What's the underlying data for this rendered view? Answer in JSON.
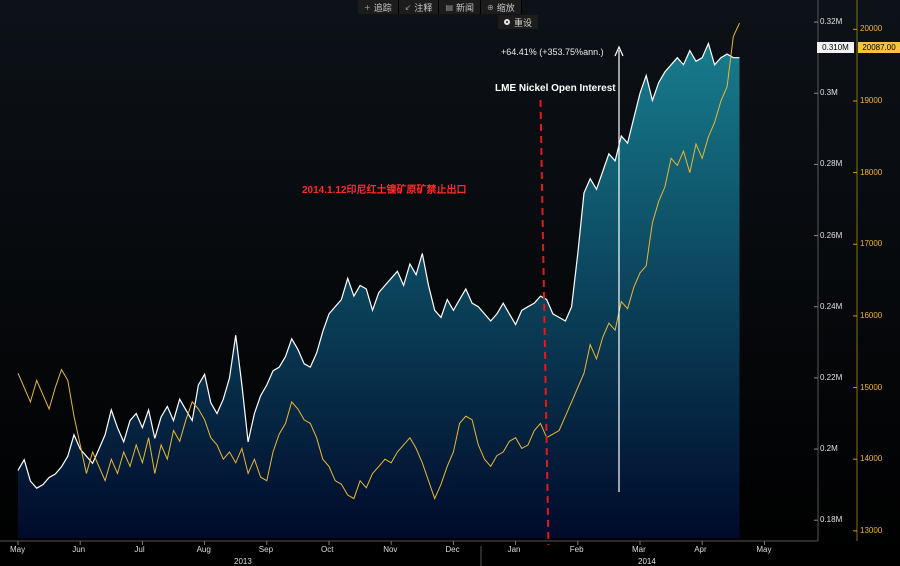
{
  "toolbar": {
    "items": [
      {
        "icon": "+",
        "label": "追踪"
      },
      {
        "icon": "↙",
        "label": "注释"
      },
      {
        "icon": "▤",
        "label": "新闻"
      },
      {
        "icon": "⊕",
        "label": "缩放"
      }
    ],
    "reset_label": "重设"
  },
  "annotations": {
    "change": "+64.41% (+353.75%ann.)",
    "series_title": "LME Nickel Open Interest",
    "event": "2014.1.12印尼红土镍矿原矿禁止出口"
  },
  "colors": {
    "area_top": "#177c8d",
    "area_bottom": "#000a2a",
    "area_line": "#ffffff",
    "price_line": "#e8b832",
    "event_line": "#e01b1b",
    "background": "#000000"
  },
  "chart_data": {
    "type": "area",
    "x_labels": [
      "May",
      "Jun",
      "Jul",
      "Aug",
      "Sep",
      "Oct",
      "Nov",
      "Dec",
      "Jan",
      "Feb",
      "Mar",
      "Apr",
      "May"
    ],
    "year_labels": [
      "2013",
      "2014"
    ],
    "left_axis": {
      "ticks": [
        "0.18M",
        "0.2M",
        "0.22M",
        "0.24M",
        "0.26M",
        "0.28M",
        "0.3M",
        "0.32M"
      ],
      "ylim": [
        0.175,
        0.322
      ]
    },
    "right_axis": {
      "ticks": [
        "13000",
        "14000",
        "15000",
        "16000",
        "17000",
        "18000",
        "19000",
        "20000"
      ],
      "ylim": [
        12900,
        20200
      ]
    },
    "last_value_tags": {
      "open_interest": "0.310M",
      "price": "20087.00"
    },
    "series": [
      {
        "values_x": [
          0,
          0.1,
          0.2,
          0.3,
          0.4,
          0.5,
          0.6,
          0.7,
          0.8,
          0.9,
          1,
          1.1,
          1.2,
          1.3,
          1.4,
          1.5,
          1.6,
          1.7,
          1.8,
          1.9,
          2,
          2.1,
          2.2,
          2.3,
          2.4,
          2.5,
          2.6,
          2.7,
          2.8,
          2.9,
          3,
          3.1,
          3.2,
          3.3,
          3.4,
          3.5,
          3.6,
          3.7,
          3.8,
          3.9,
          4,
          4.1,
          4.2,
          4.3,
          4.4,
          4.5,
          4.6,
          4.7,
          4.8,
          4.9,
          5,
          5.1,
          5.2,
          5.3,
          5.4,
          5.5,
          5.6,
          5.7,
          5.8,
          5.9,
          6,
          6.1,
          6.2,
          6.3,
          6.4,
          6.5,
          6.6,
          6.7,
          6.8,
          6.9,
          7,
          7.1,
          7.2,
          7.3,
          7.4,
          7.5,
          7.6,
          7.7,
          7.8,
          7.9,
          8,
          8.1,
          8.2,
          8.3,
          8.4,
          8.5,
          8.6,
          8.7,
          8.8,
          8.9,
          9,
          9.1,
          9.2,
          9.3,
          9.4,
          9.5,
          9.6,
          9.7,
          9.8,
          9.9,
          10,
          10.1,
          10.2,
          10.3,
          10.4,
          10.5,
          10.6,
          10.7,
          10.8,
          10.9,
          11,
          11.1,
          11.2,
          11.3,
          11.4,
          11.5,
          11.6
        ],
        "values": [
          0.194,
          0.197,
          0.191,
          0.189,
          0.19,
          0.192,
          0.193,
          0.195,
          0.198,
          0.204,
          0.2,
          0.198,
          0.196,
          0.2,
          0.204,
          0.211,
          0.206,
          0.202,
          0.208,
          0.21,
          0.206,
          0.211,
          0.203,
          0.209,
          0.212,
          0.208,
          0.214,
          0.211,
          0.208,
          0.218,
          0.221,
          0.213,
          0.21,
          0.214,
          0.22,
          0.232,
          0.218,
          0.202,
          0.21,
          0.215,
          0.218,
          0.222,
          0.223,
          0.226,
          0.231,
          0.228,
          0.224,
          0.223,
          0.227,
          0.233,
          0.238,
          0.24,
          0.242,
          0.248,
          0.243,
          0.246,
          0.245,
          0.239,
          0.244,
          0.246,
          0.248,
          0.25,
          0.246,
          0.252,
          0.249,
          0.255,
          0.246,
          0.239,
          0.237,
          0.242,
          0.239,
          0.242,
          0.245,
          0.241,
          0.24,
          0.238,
          0.236,
          0.238,
          0.241,
          0.238,
          0.235,
          0.239,
          0.24,
          0.241,
          0.243,
          0.242,
          0.238,
          0.237,
          0.236,
          0.24,
          0.255,
          0.272,
          0.276,
          0.273,
          0.278,
          0.283,
          0.281,
          0.288,
          0.286,
          0.293,
          0.3,
          0.305,
          0.298,
          0.303,
          0.306,
          0.308,
          0.31,
          0.308,
          0.312,
          0.309,
          0.31,
          0.314,
          0.308,
          0.31,
          0.311,
          0.31,
          0.31
        ]
      },
      {
        "values_x": [
          0,
          0.1,
          0.2,
          0.3,
          0.4,
          0.5,
          0.6,
          0.7,
          0.8,
          0.9,
          1,
          1.1,
          1.2,
          1.3,
          1.4,
          1.5,
          1.6,
          1.7,
          1.8,
          1.9,
          2,
          2.1,
          2.2,
          2.3,
          2.4,
          2.5,
          2.6,
          2.7,
          2.8,
          2.9,
          3,
          3.1,
          3.2,
          3.3,
          3.4,
          3.5,
          3.6,
          3.7,
          3.8,
          3.9,
          4,
          4.1,
          4.2,
          4.3,
          4.4,
          4.5,
          4.6,
          4.7,
          4.8,
          4.9,
          5,
          5.1,
          5.2,
          5.3,
          5.4,
          5.5,
          5.6,
          5.7,
          5.8,
          5.9,
          6,
          6.1,
          6.2,
          6.3,
          6.4,
          6.5,
          6.6,
          6.7,
          6.8,
          6.9,
          7,
          7.1,
          7.2,
          7.3,
          7.4,
          7.5,
          7.6,
          7.7,
          7.8,
          7.9,
          8,
          8.1,
          8.2,
          8.3,
          8.4,
          8.5,
          8.6,
          8.7,
          8.8,
          8.9,
          9,
          9.1,
          9.2,
          9.3,
          9.4,
          9.5,
          9.6,
          9.7,
          9.8,
          9.9,
          10,
          10.1,
          10.2,
          10.3,
          10.4,
          10.5,
          10.6,
          10.7,
          10.8,
          10.9,
          11,
          11.1,
          11.2,
          11.3,
          11.4,
          11.5,
          11.6
        ],
        "values": [
          15200,
          15000,
          14800,
          15100,
          14900,
          14700,
          15000,
          15250,
          15100,
          14600,
          14200,
          13800,
          14100,
          13900,
          13700,
          14000,
          13800,
          14100,
          13900,
          14200,
          13950,
          14300,
          13800,
          14200,
          14000,
          14400,
          14250,
          14550,
          14800,
          14700,
          14550,
          14300,
          14200,
          14000,
          14100,
          13950,
          14150,
          13800,
          14000,
          13750,
          13700,
          14100,
          14350,
          14500,
          14800,
          14700,
          14550,
          14500,
          14300,
          14000,
          13900,
          13700,
          13650,
          13500,
          13450,
          13700,
          13600,
          13800,
          13900,
          14000,
          13950,
          14100,
          14200,
          14300,
          14150,
          13950,
          13700,
          13450,
          13650,
          13900,
          14100,
          14500,
          14600,
          14550,
          14200,
          14000,
          13900,
          14050,
          14100,
          14250,
          14300,
          14150,
          14200,
          14400,
          14500,
          14300,
          14350,
          14400,
          14600,
          14800,
          15000,
          15200,
          15600,
          15400,
          15700,
          15900,
          15800,
          16200,
          16100,
          16400,
          16600,
          16700,
          17300,
          17600,
          17800,
          18200,
          18100,
          18300,
          18000,
          18400,
          18200,
          18500,
          18700,
          19000,
          19200,
          19900,
          20087
        ]
      }
    ]
  }
}
